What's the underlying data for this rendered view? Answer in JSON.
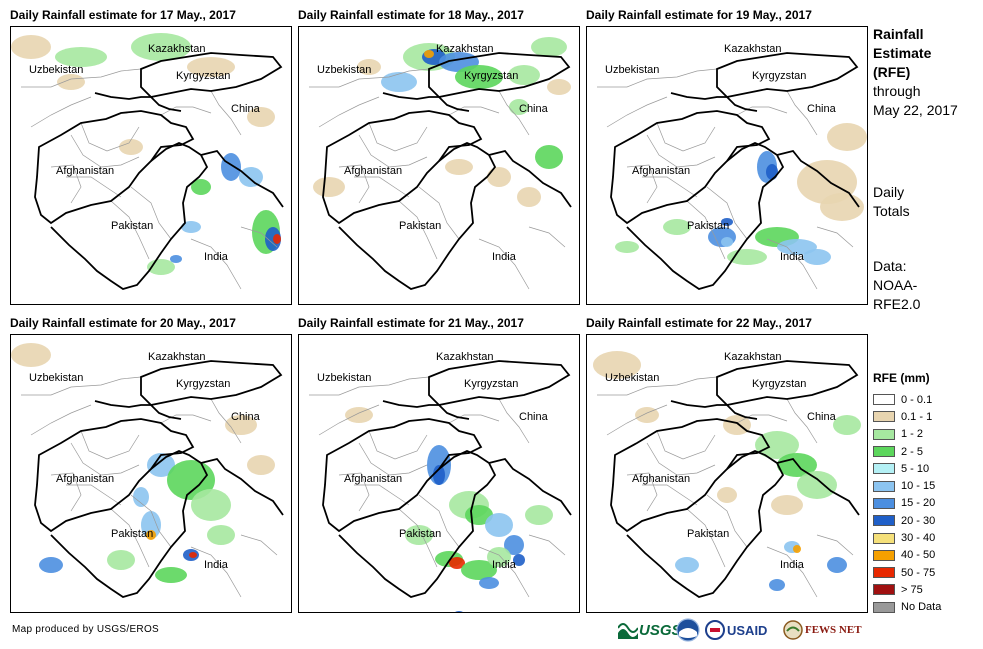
{
  "panels": [
    {
      "title": "Daily Rainfall estimate for 17 May., 2017"
    },
    {
      "title": "Daily Rainfall estimate for 18 May., 2017"
    },
    {
      "title": "Daily Rainfall estimate for 19 May., 2017"
    },
    {
      "title": "Daily Rainfall estimate for 20 May., 2017"
    },
    {
      "title": "Daily Rainfall estimate for 21 May., 2017"
    },
    {
      "title": "Daily Rainfall estimate for 22 May., 2017"
    }
  ],
  "map_labels": {
    "kazakhstan": "Kazakhstan",
    "uzbekistan": "Uzbekistan",
    "kyrgyzstan": "Kyrgyzstan",
    "china": "China",
    "afghanistan": "Afghanistan",
    "pakistan": "Pakistan",
    "india": "India"
  },
  "sidebar": {
    "title_line1": "Rainfall",
    "title_line2": "Estimate",
    "title_line3": "(RFE)",
    "title_line4": "through",
    "title_line5": "May 22, 2017",
    "daily_line1": "Daily",
    "daily_line2": "Totals",
    "data_line1": "Data:",
    "data_line2": "NOAA-",
    "data_line3": "RFE2.0"
  },
  "legend": {
    "title": "RFE (mm)",
    "items": [
      {
        "label": "0 - 0.1",
        "color": "#ffffff"
      },
      {
        "label": "0.1 - 1",
        "color": "#e8d5b0"
      },
      {
        "label": "1 - 2",
        "color": "#a6e8a0"
      },
      {
        "label": "2 - 5",
        "color": "#5cd65c"
      },
      {
        "label": "5 - 10",
        "color": "#b4f0f5"
      },
      {
        "label": "10 - 15",
        "color": "#8cc4f0"
      },
      {
        "label": "15 - 20",
        "color": "#4c8fe0"
      },
      {
        "label": "20 - 30",
        "color": "#1f5fc8"
      },
      {
        "label": "30 - 40",
        "color": "#f5e07a"
      },
      {
        "label": "40 - 50",
        "color": "#f5a000"
      },
      {
        "label": "50 - 75",
        "color": "#e82800"
      },
      {
        "label": "> 75",
        "color": "#a01010"
      },
      {
        "label": "No Data",
        "color": "#999999"
      }
    ]
  },
  "footer": {
    "credit": "Map produced by USGS/EROS",
    "logo_usgs": "USGS",
    "logo_usaid": "USAID",
    "logo_fews": "FEWS NET"
  }
}
